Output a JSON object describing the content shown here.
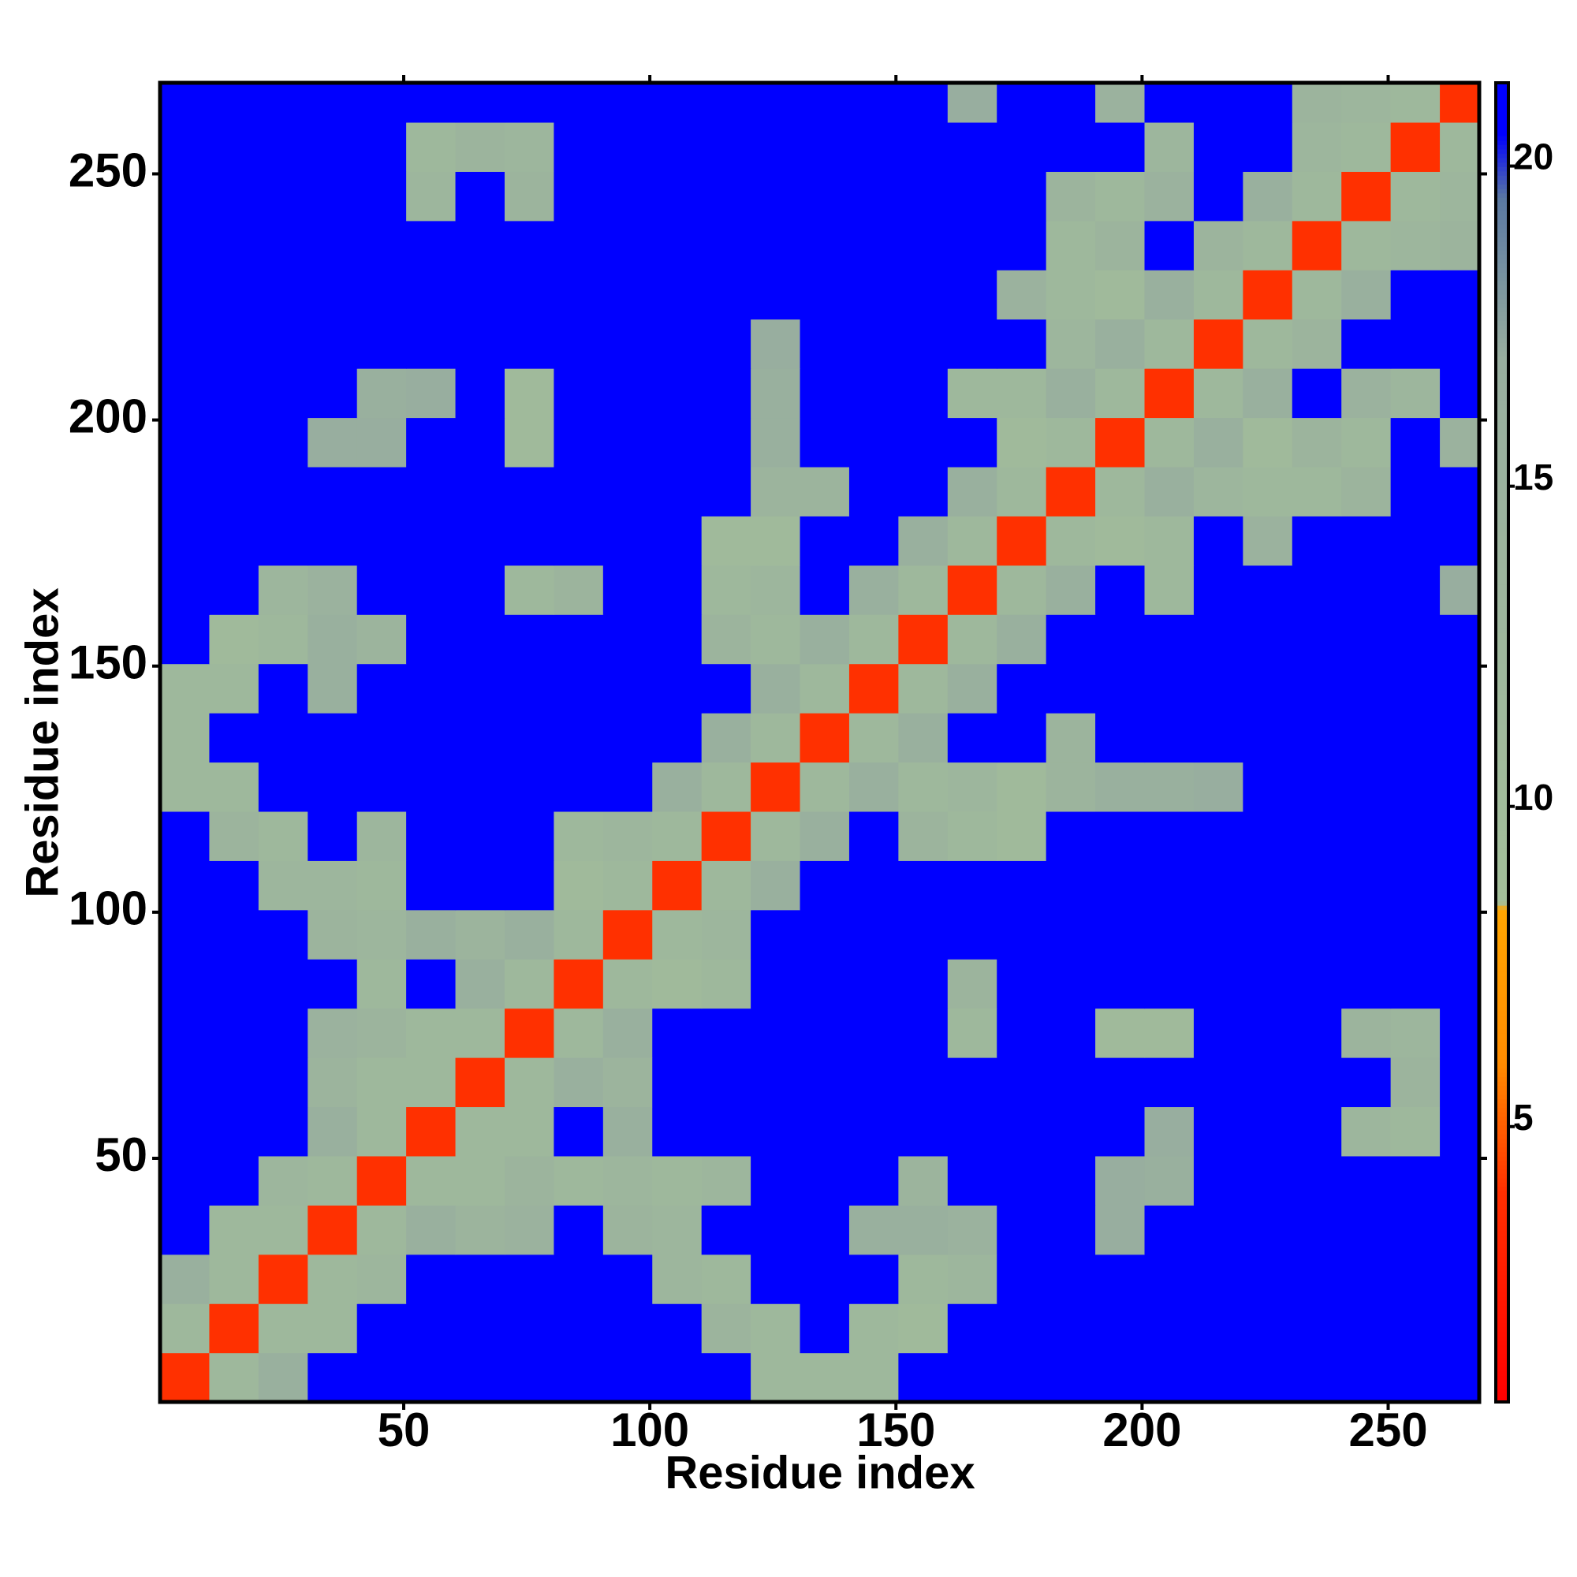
{
  "chart_data": {
    "type": "heatmap",
    "xlabel": "Residue index",
    "ylabel": "Residue index",
    "xlim": [
      0.5,
      268.5
    ],
    "ylim": [
      0.5,
      268.5
    ],
    "xticks": [
      50,
      100,
      150,
      200,
      250
    ],
    "yticks": [
      50,
      100,
      150,
      200,
      250
    ],
    "zlim": [
      0.7,
      21.3
    ],
    "zticks": [
      5,
      10,
      15,
      20
    ],
    "colorscale": [
      [
        0.7,
        "#ff0000"
      ],
      [
        4,
        "#ff3000"
      ],
      [
        6,
        "#ff8c00"
      ],
      [
        8.4,
        "#ffa500"
      ],
      [
        8.5,
        "#a3bf9a"
      ],
      [
        17,
        "#98ae9f"
      ],
      [
        19.5,
        "#5a78a0"
      ],
      [
        20.5,
        "#0000ff"
      ],
      [
        21.3,
        "#0000ff"
      ]
    ],
    "x": [
      5.5,
      15.5,
      25.5,
      35.5,
      45.5,
      55.5,
      65.5,
      75.5,
      85.5,
      95.5,
      105.5,
      115.5,
      125.5,
      135.5,
      145.5,
      155.5,
      165.5,
      175.5,
      185.5,
      195.5,
      205.5,
      215.5,
      225.5,
      235.5,
      245.5,
      255.5,
      265.5
    ],
    "y": [
      5.5,
      15.5,
      25.5,
      35.5,
      45.5,
      55.5,
      65.5,
      75.5,
      85.5,
      95.5,
      105.5,
      115.5,
      125.5,
      135.5,
      145.5,
      155.5,
      165.5,
      175.5,
      185.5,
      195.5,
      205.5,
      215.5,
      225.5,
      235.5,
      245.5,
      255.5,
      265.5
    ],
    "z": [
      [
        4,
        12,
        16,
        21,
        21,
        21,
        21,
        21,
        21,
        21,
        21,
        21,
        12,
        12,
        12,
        21,
        21,
        21,
        21,
        21,
        21,
        21,
        21,
        21,
        21,
        21,
        21
      ],
      [
        12,
        4,
        12,
        12,
        21,
        21,
        21,
        21,
        21,
        21,
        21,
        14,
        12,
        21,
        12,
        11,
        21,
        21,
        21,
        21,
        21,
        21,
        21,
        21,
        21,
        21,
        21
      ],
      [
        16,
        12,
        4,
        12,
        13,
        21,
        21,
        21,
        21,
        21,
        13,
        12,
        21,
        21,
        21,
        12,
        13,
        21,
        21,
        21,
        21,
        21,
        21,
        21,
        21,
        21,
        21
      ],
      [
        21,
        12,
        12,
        4,
        12,
        16,
        14,
        15,
        21,
        14,
        13,
        21,
        21,
        21,
        16,
        16,
        15,
        21,
        21,
        17,
        21,
        21,
        21,
        21,
        21,
        21,
        21
      ],
      [
        21,
        21,
        13,
        12,
        4,
        12,
        12,
        14,
        12,
        13,
        12,
        13,
        21,
        21,
        21,
        14,
        21,
        21,
        21,
        17,
        16,
        21,
        21,
        21,
        21,
        21,
        21
      ],
      [
        21,
        21,
        21,
        16,
        12,
        4,
        12,
        12,
        21,
        16,
        21,
        21,
        21,
        21,
        21,
        21,
        21,
        21,
        21,
        21,
        17,
        21,
        21,
        21,
        13,
        12,
        21
      ],
      [
        21,
        21,
        21,
        14,
        12,
        12,
        4,
        12,
        16,
        14,
        21,
        21,
        21,
        21,
        21,
        21,
        21,
        21,
        21,
        21,
        21,
        21,
        21,
        21,
        21,
        14,
        21
      ],
      [
        21,
        21,
        21,
        15,
        14,
        12,
        12,
        4,
        12,
        16,
        21,
        21,
        21,
        21,
        21,
        21,
        12,
        21,
        21,
        11,
        11,
        21,
        21,
        21,
        14,
        13,
        21
      ],
      [
        21,
        21,
        21,
        21,
        12,
        21,
        16,
        12,
        4,
        12,
        11,
        12,
        21,
        21,
        21,
        21,
        14,
        21,
        21,
        21,
        21,
        21,
        21,
        21,
        21,
        21,
        21
      ],
      [
        21,
        21,
        21,
        14,
        13,
        16,
        14,
        16,
        12,
        4,
        12,
        13,
        21,
        21,
        21,
        21,
        21,
        21,
        21,
        21,
        21,
        21,
        21,
        21,
        21,
        21,
        21
      ],
      [
        21,
        21,
        13,
        13,
        12,
        21,
        21,
        21,
        11,
        12,
        4,
        12,
        16,
        21,
        21,
        21,
        21,
        21,
        21,
        21,
        21,
        21,
        21,
        21,
        21,
        21,
        21
      ],
      [
        21,
        14,
        12,
        21,
        13,
        21,
        21,
        21,
        12,
        13,
        12,
        4,
        12,
        16,
        21,
        14,
        12,
        11,
        21,
        21,
        21,
        21,
        21,
        21,
        21,
        21,
        21
      ],
      [
        12,
        12,
        21,
        21,
        21,
        21,
        21,
        21,
        21,
        21,
        16,
        12,
        4,
        12,
        16,
        12,
        13,
        11,
        14,
        16,
        16,
        17,
        21,
        21,
        21,
        21,
        21
      ],
      [
        12,
        21,
        21,
        21,
        21,
        21,
        21,
        21,
        21,
        21,
        21,
        16,
        12,
        4,
        12,
        16,
        21,
        21,
        14,
        21,
        21,
        21,
        21,
        21,
        21,
        21,
        21
      ],
      [
        12,
        12,
        21,
        16,
        21,
        21,
        21,
        21,
        21,
        21,
        21,
        21,
        16,
        12,
        4,
        12,
        16,
        21,
        21,
        21,
        21,
        21,
        21,
        21,
        21,
        21,
        21
      ],
      [
        21,
        11,
        12,
        16,
        14,
        21,
        21,
        21,
        21,
        21,
        21,
        14,
        12,
        16,
        12,
        4,
        12,
        16,
        21,
        21,
        21,
        21,
        21,
        21,
        21,
        21,
        21
      ],
      [
        21,
        21,
        13,
        15,
        21,
        21,
        21,
        12,
        14,
        21,
        21,
        12,
        13,
        21,
        16,
        12,
        4,
        12,
        16,
        21,
        12,
        21,
        21,
        21,
        21,
        21,
        17
      ],
      [
        21,
        21,
        21,
        21,
        21,
        21,
        21,
        21,
        21,
        21,
        21,
        11,
        11,
        21,
        21,
        16,
        12,
        4,
        12,
        11,
        12,
        21,
        15,
        21,
        21,
        21,
        21
      ],
      [
        21,
        21,
        21,
        21,
        21,
        21,
        21,
        21,
        21,
        21,
        21,
        21,
        14,
        14,
        21,
        21,
        16,
        12,
        4,
        12,
        16,
        13,
        12,
        12,
        14,
        21,
        21
      ],
      [
        21,
        21,
        21,
        17,
        17,
        21,
        21,
        11,
        21,
        21,
        21,
        21,
        16,
        21,
        21,
        21,
        21,
        11,
        12,
        4,
        12,
        16,
        11,
        14,
        12,
        21,
        15
      ],
      [
        21,
        21,
        21,
        21,
        16,
        17,
        21,
        11,
        21,
        21,
        21,
        21,
        16,
        21,
        21,
        21,
        12,
        12,
        16,
        12,
        4,
        12,
        16,
        21,
        15,
        13,
        21
      ],
      [
        21,
        21,
        21,
        21,
        21,
        21,
        21,
        21,
        21,
        21,
        21,
        21,
        17,
        21,
        21,
        21,
        21,
        21,
        13,
        16,
        12,
        4,
        12,
        14,
        21,
        21,
        21
      ],
      [
        21,
        21,
        21,
        21,
        21,
        21,
        21,
        21,
        21,
        21,
        21,
        21,
        21,
        21,
        21,
        21,
        21,
        15,
        12,
        11,
        16,
        12,
        4,
        12,
        16,
        21,
        21
      ],
      [
        21,
        21,
        21,
        21,
        21,
        21,
        21,
        21,
        21,
        21,
        21,
        21,
        21,
        21,
        21,
        21,
        21,
        21,
        12,
        14,
        21,
        14,
        12,
        4,
        12,
        13,
        14
      ],
      [
        21,
        21,
        21,
        21,
        21,
        13,
        21,
        14,
        21,
        21,
        21,
        21,
        21,
        21,
        21,
        21,
        21,
        21,
        14,
        12,
        15,
        21,
        16,
        12,
        4,
        12,
        13
      ],
      [
        21,
        21,
        21,
        21,
        21,
        12,
        14,
        13,
        21,
        21,
        21,
        21,
        21,
        21,
        21,
        21,
        21,
        21,
        21,
        21,
        13,
        21,
        21,
        13,
        12,
        4,
        12
      ],
      [
        21,
        21,
        21,
        21,
        21,
        21,
        21,
        21,
        21,
        21,
        21,
        21,
        21,
        21,
        21,
        21,
        17,
        21,
        21,
        15,
        21,
        21,
        21,
        14,
        13,
        12,
        4
      ]
    ]
  }
}
